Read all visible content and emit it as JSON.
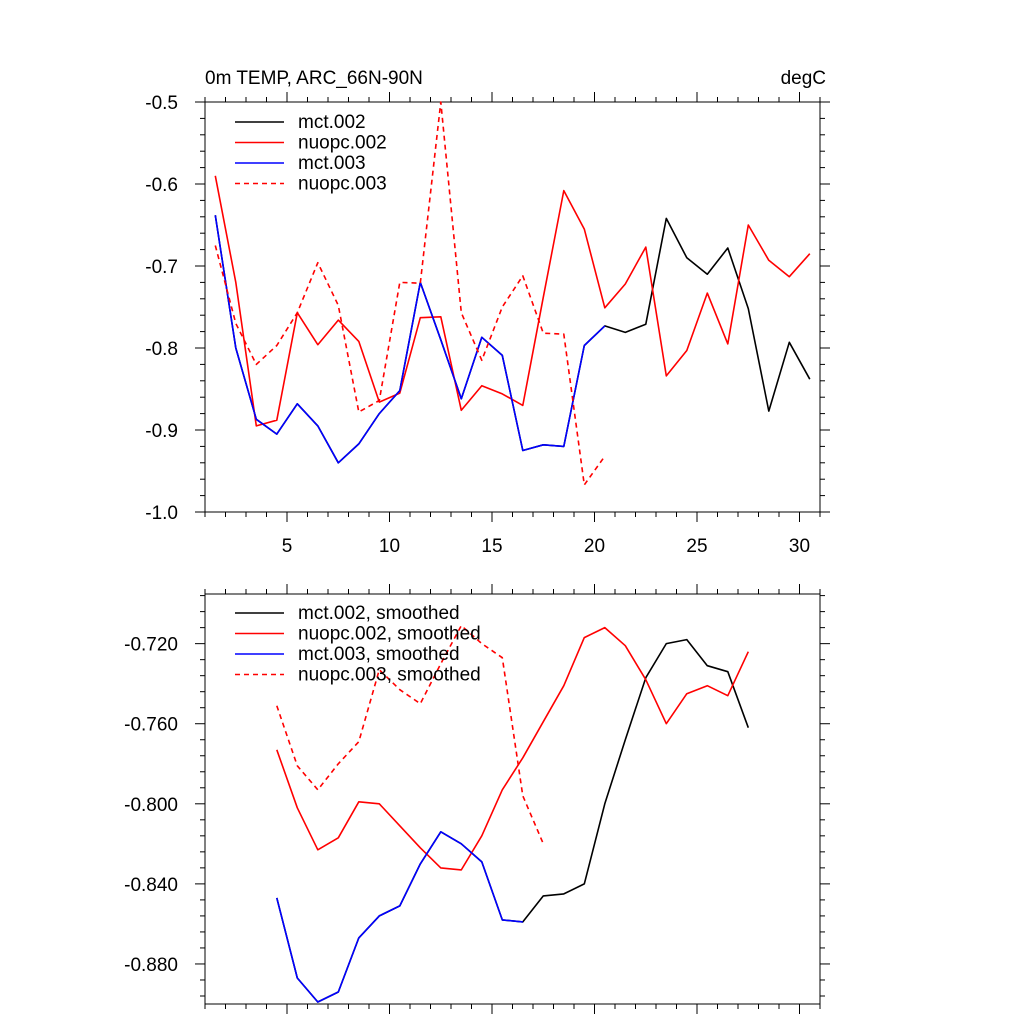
{
  "chart_data": [
    {
      "type": "line",
      "title": "0m TEMP, ARC_66N-90N",
      "units": "degC",
      "xlim": [
        1,
        31
      ],
      "ylim": [
        -1.0,
        -0.5
      ],
      "xticks": [
        5,
        10,
        15,
        20,
        25,
        30
      ],
      "xtick_labels": [
        "5",
        "10",
        "15",
        "20",
        "25",
        "30"
      ],
      "yticks": [
        -1.0,
        -0.9,
        -0.8,
        -0.7,
        -0.6,
        -0.5
      ],
      "ytick_labels": [
        "-1.0",
        "-0.9",
        "-0.8",
        "-0.7",
        "-0.6",
        "-0.5"
      ],
      "legend_position": "top-left",
      "series": [
        {
          "name": "mct.002",
          "color": "#000000",
          "dash": "solid",
          "x": [
            1.5,
            2.5,
            3.5,
            4.5,
            5.5,
            6.5,
            7.5,
            8.5,
            9.5,
            10.5,
            11.5,
            12.5,
            13.5,
            14.5,
            15.5,
            16.5,
            17.5,
            18.5,
            19.5,
            20.5,
            21.5,
            22.5,
            23.5,
            24.5,
            25.5,
            26.5,
            27.5,
            28.5,
            29.5,
            30.5
          ],
          "y": [
            -0.638,
            -0.8,
            -0.887,
            -0.905,
            -0.868,
            -0.895,
            -0.94,
            -0.917,
            -0.88,
            -0.852,
            -0.72,
            -0.79,
            -0.862,
            -0.787,
            -0.809,
            -0.925,
            -0.918,
            -0.92,
            -0.797,
            -0.773,
            -0.781,
            -0.771,
            -0.642,
            -0.69,
            -0.71,
            -0.678,
            -0.752,
            -0.877,
            -0.793,
            -0.838
          ]
        },
        {
          "name": "nuopc.002",
          "color": "#ff0000",
          "dash": "solid",
          "x": [
            1.5,
            2.5,
            3.5,
            4.5,
            5.5,
            6.5,
            7.5,
            8.5,
            9.5,
            10.5,
            11.5,
            12.5,
            13.5,
            14.5,
            15.5,
            16.5,
            17.5,
            18.5,
            19.5,
            20.5,
            21.5,
            22.5,
            23.5,
            24.5,
            25.5,
            26.5,
            27.5,
            28.5,
            29.5,
            30.5
          ],
          "y": [
            -0.59,
            -0.72,
            -0.895,
            -0.888,
            -0.757,
            -0.796,
            -0.766,
            -0.792,
            -0.866,
            -0.855,
            -0.763,
            -0.762,
            -0.876,
            -0.846,
            -0.856,
            -0.87,
            -0.738,
            -0.608,
            -0.655,
            -0.751,
            -0.722,
            -0.677,
            -0.834,
            -0.803,
            -0.733,
            -0.795,
            -0.65,
            -0.693,
            -0.713,
            -0.685
          ]
        },
        {
          "name": "mct.003",
          "color": "#0000ff",
          "dash": "solid",
          "x": [
            1.5,
            2.5,
            3.5,
            4.5,
            5.5,
            6.5,
            7.5,
            8.5,
            9.5,
            10.5,
            11.5,
            12.5,
            13.5,
            14.5,
            15.5,
            16.5,
            17.5,
            18.5,
            19.5,
            20.5
          ],
          "y": [
            -0.638,
            -0.8,
            -0.887,
            -0.905,
            -0.868,
            -0.895,
            -0.94,
            -0.917,
            -0.88,
            -0.852,
            -0.72,
            -0.79,
            -0.862,
            -0.787,
            -0.809,
            -0.925,
            -0.918,
            -0.92,
            -0.797,
            -0.773
          ]
        },
        {
          "name": "nuopc.003",
          "color": "#ff0000",
          "dash": "dashed",
          "x": [
            1.5,
            2.5,
            3.5,
            4.5,
            5.5,
            6.5,
            7.5,
            8.5,
            9.5,
            10.5,
            11.5,
            12.5,
            13.5,
            14.5,
            15.5,
            16.5,
            17.5,
            18.5,
            19.5,
            20.5
          ],
          "y": [
            -0.675,
            -0.77,
            -0.82,
            -0.797,
            -0.757,
            -0.696,
            -0.748,
            -0.878,
            -0.864,
            -0.72,
            -0.721,
            -0.5,
            -0.757,
            -0.815,
            -0.75,
            -0.712,
            -0.782,
            -0.783,
            -0.967,
            -0.932
          ]
        }
      ]
    },
    {
      "type": "line",
      "xlim": [
        1,
        31
      ],
      "ylim": [
        -0.9,
        -0.6952
      ],
      "xticks": [
        5,
        10,
        15,
        20,
        25,
        30
      ],
      "yticks": [
        -0.88,
        -0.84,
        -0.8,
        -0.76,
        -0.72
      ],
      "ytick_labels": [
        "-0.880",
        "-0.840",
        "-0.800",
        "-0.760",
        "-0.720"
      ],
      "legend_position": "top-left",
      "series": [
        {
          "name": "mct.002, smoothed",
          "color": "#000000",
          "dash": "solid",
          "x": [
            4.5,
            5.5,
            6.5,
            7.5,
            8.5,
            9.5,
            10.5,
            11.5,
            12.5,
            13.5,
            14.5,
            15.5,
            16.5,
            17.5,
            18.5,
            19.5,
            20.5,
            21.5,
            22.5,
            23.5,
            24.5,
            25.5,
            26.5,
            27.5
          ],
          "y": [
            -0.847,
            -0.887,
            -0.899,
            -0.894,
            -0.867,
            -0.856,
            -0.851,
            -0.83,
            -0.814,
            -0.82,
            -0.829,
            -0.858,
            -0.859,
            -0.846,
            -0.845,
            -0.84,
            -0.8,
            -0.768,
            -0.737,
            -0.72,
            -0.718,
            -0.731,
            -0.734,
            -0.762
          ]
        },
        {
          "name": "nuopc.002, smoothed",
          "color": "#ff0000",
          "dash": "solid",
          "x": [
            4.5,
            5.5,
            6.5,
            7.5,
            8.5,
            9.5,
            10.5,
            11.5,
            12.5,
            13.5,
            14.5,
            15.5,
            16.5,
            17.5,
            18.5,
            19.5,
            20.5,
            21.5,
            22.5,
            23.5,
            24.5,
            25.5,
            26.5,
            27.5
          ],
          "y": [
            -0.773,
            -0.802,
            -0.823,
            -0.817,
            -0.799,
            -0.8,
            -0.811,
            -0.822,
            -0.832,
            -0.833,
            -0.816,
            -0.793,
            -0.777,
            -0.759,
            -0.741,
            -0.717,
            -0.712,
            -0.721,
            -0.738,
            -0.76,
            -0.745,
            -0.741,
            -0.746,
            -0.724
          ]
        },
        {
          "name": "mct.003, smoothed",
          "color": "#0000ff",
          "dash": "solid",
          "x": [
            4.5,
            5.5,
            6.5,
            7.5,
            8.5,
            9.5,
            10.5,
            11.5,
            12.5,
            13.5,
            14.5,
            15.5,
            16.5
          ],
          "y": [
            -0.847,
            -0.887,
            -0.899,
            -0.894,
            -0.867,
            -0.856,
            -0.851,
            -0.83,
            -0.814,
            -0.82,
            -0.829,
            -0.858,
            -0.859
          ]
        },
        {
          "name": "nuopc.003, smoothed",
          "color": "#ff0000",
          "dash": "dashed",
          "x": [
            4.5,
            5.5,
            6.5,
            7.5,
            8.5,
            9.5,
            10.5,
            11.5,
            12.5,
            13.5,
            14.5,
            15.5,
            16.5,
            17.5
          ],
          "y": [
            -0.751,
            -0.781,
            -0.793,
            -0.78,
            -0.769,
            -0.733,
            -0.743,
            -0.75,
            -0.73,
            -0.711,
            -0.72,
            -0.727,
            -0.796,
            -0.82
          ]
        }
      ]
    }
  ]
}
